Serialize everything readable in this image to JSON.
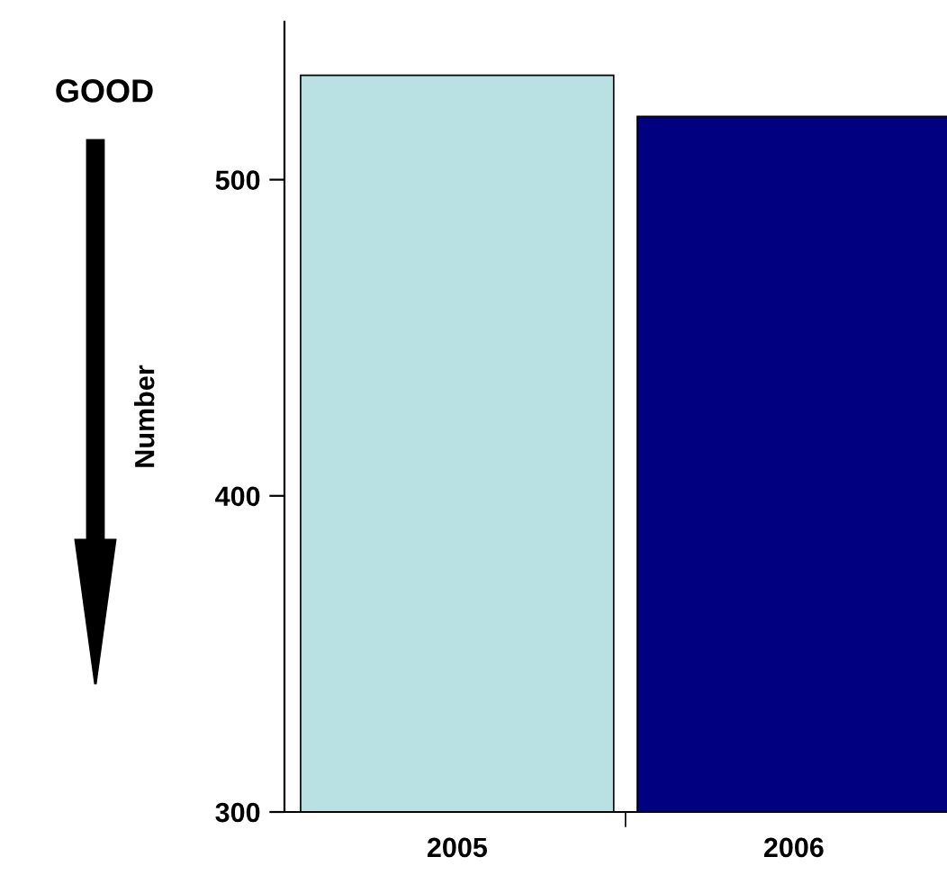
{
  "chart_data": {
    "type": "bar",
    "ylabel": "Number",
    "categories": [
      "2005",
      "2006"
    ],
    "values": [
      533,
      520
    ],
    "colors": [
      "#b9e1e3",
      "#000080"
    ],
    "ylim": [
      300,
      550
    ],
    "yticks": [
      300,
      400,
      500
    ],
    "grid": false,
    "legend": false,
    "annotations": [
      "GOOD"
    ]
  }
}
